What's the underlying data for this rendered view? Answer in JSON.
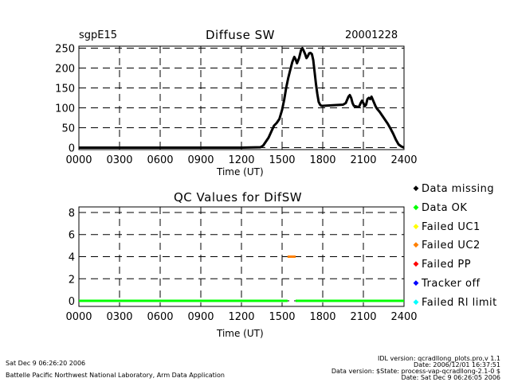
{
  "header": {
    "site": "sgpE15",
    "date": "20001228"
  },
  "chart_data": [
    {
      "type": "line",
      "title": "Diffuse SW",
      "xlabel": "Time (UT)",
      "ylabel": "",
      "xlim": [
        0,
        2400
      ],
      "ylim": [
        -5,
        255
      ],
      "x_ticks": [
        "0000",
        "0300",
        "0600",
        "0900",
        "1200",
        "1500",
        "1800",
        "2100",
        "2400"
      ],
      "y_ticks": [
        "0",
        "50",
        "100",
        "150",
        "200",
        "250"
      ],
      "x_tick_values": [
        0,
        300,
        600,
        900,
        1200,
        1500,
        1800,
        2100,
        2400
      ],
      "y_tick_values": [
        0,
        50,
        100,
        150,
        200,
        250
      ],
      "series": [
        {
          "name": "Diffuse SW",
          "x": [
            0,
            300,
            600,
            900,
            1200,
            1340,
            1360,
            1380,
            1400,
            1420,
            1440,
            1460,
            1480,
            1500,
            1515,
            1530,
            1545,
            1560,
            1575,
            1590,
            1600,
            1610,
            1625,
            1640,
            1650,
            1660,
            1670,
            1680,
            1690,
            1700,
            1710,
            1720,
            1730,
            1740,
            1750,
            1760,
            1770,
            1780,
            1790,
            1800,
            1850,
            1900,
            1950,
            1970,
            1990,
            2000,
            2010,
            2020,
            2030,
            2040,
            2050,
            2060,
            2070,
            2080,
            2090,
            2100,
            2110,
            2120,
            2130,
            2140,
            2150,
            2160,
            2170,
            2180,
            2190,
            2200,
            2220,
            2240,
            2260,
            2280,
            2300,
            2320,
            2340,
            2360,
            2380,
            2400
          ],
          "values": [
            0,
            0,
            0,
            0,
            0,
            1,
            5,
            15,
            25,
            40,
            55,
            62,
            72,
            95,
            120,
            150,
            175,
            195,
            215,
            228,
            222,
            212,
            225,
            245,
            250,
            243,
            235,
            225,
            230,
            237,
            238,
            235,
            220,
            190,
            160,
            135,
            115,
            108,
            105,
            105,
            106,
            107,
            108,
            112,
            128,
            132,
            125,
            112,
            105,
            104,
            103,
            102,
            104,
            112,
            118,
            112,
            104,
            108,
            122,
            125,
            122,
            128,
            120,
            112,
            104,
            98,
            90,
            80,
            70,
            60,
            48,
            35,
            20,
            8,
            3,
            0
          ]
        }
      ]
    },
    {
      "type": "line",
      "title": "QC Values for DifSW",
      "xlabel": "Time (UT)",
      "ylabel": "",
      "xlim": [
        0,
        2400
      ],
      "ylim": [
        -0.5,
        8.5
      ],
      "x_ticks": [
        "0000",
        "0300",
        "0600",
        "0900",
        "1200",
        "1500",
        "1800",
        "2100",
        "2400"
      ],
      "y_ticks": [
        "0",
        "2",
        "4",
        "6",
        "8"
      ],
      "x_tick_values": [
        0,
        300,
        600,
        900,
        1200,
        1500,
        1800,
        2100,
        2400
      ],
      "y_tick_values": [
        0,
        2,
        4,
        6,
        8
      ],
      "series": [
        {
          "name": "Data OK",
          "color": "#00ff00",
          "segments": [
            [
              0,
              1540,
              0
            ],
            [
              1600,
              2400,
              0
            ]
          ]
        },
        {
          "name": "Failed UC2",
          "color": "#ff8000",
          "segments": [
            [
              1540,
              1600,
              4
            ]
          ]
        }
      ]
    }
  ],
  "legend": [
    {
      "label": "Data missing",
      "color": "#000000"
    },
    {
      "label": "Data OK",
      "color": "#00ff00"
    },
    {
      "label": "Failed UC1",
      "color": "#ffff00"
    },
    {
      "label": "Failed UC2",
      "color": "#ff8000"
    },
    {
      "label": "Failed PP",
      "color": "#ff0000"
    },
    {
      "label": "Tracker off",
      "color": "#0000ff"
    },
    {
      "label": "Failed Rl limit",
      "color": "#00ffff"
    }
  ],
  "footer": {
    "left_date": "Sat Dec  9 06:26:20 2006",
    "left_org": "Battelle Pacific Northwest National Laboratory, Arm Data Application",
    "right_lines": [
      "IDL version: qcradllong_plots.pro,v 1.1",
      "Date: 2006/12/01 16:37:51",
      "Data version: $State: process-vap-qcradllong-2.1-0 $",
      "Date: Sat Dec  9 06:26:05 2006"
    ]
  }
}
